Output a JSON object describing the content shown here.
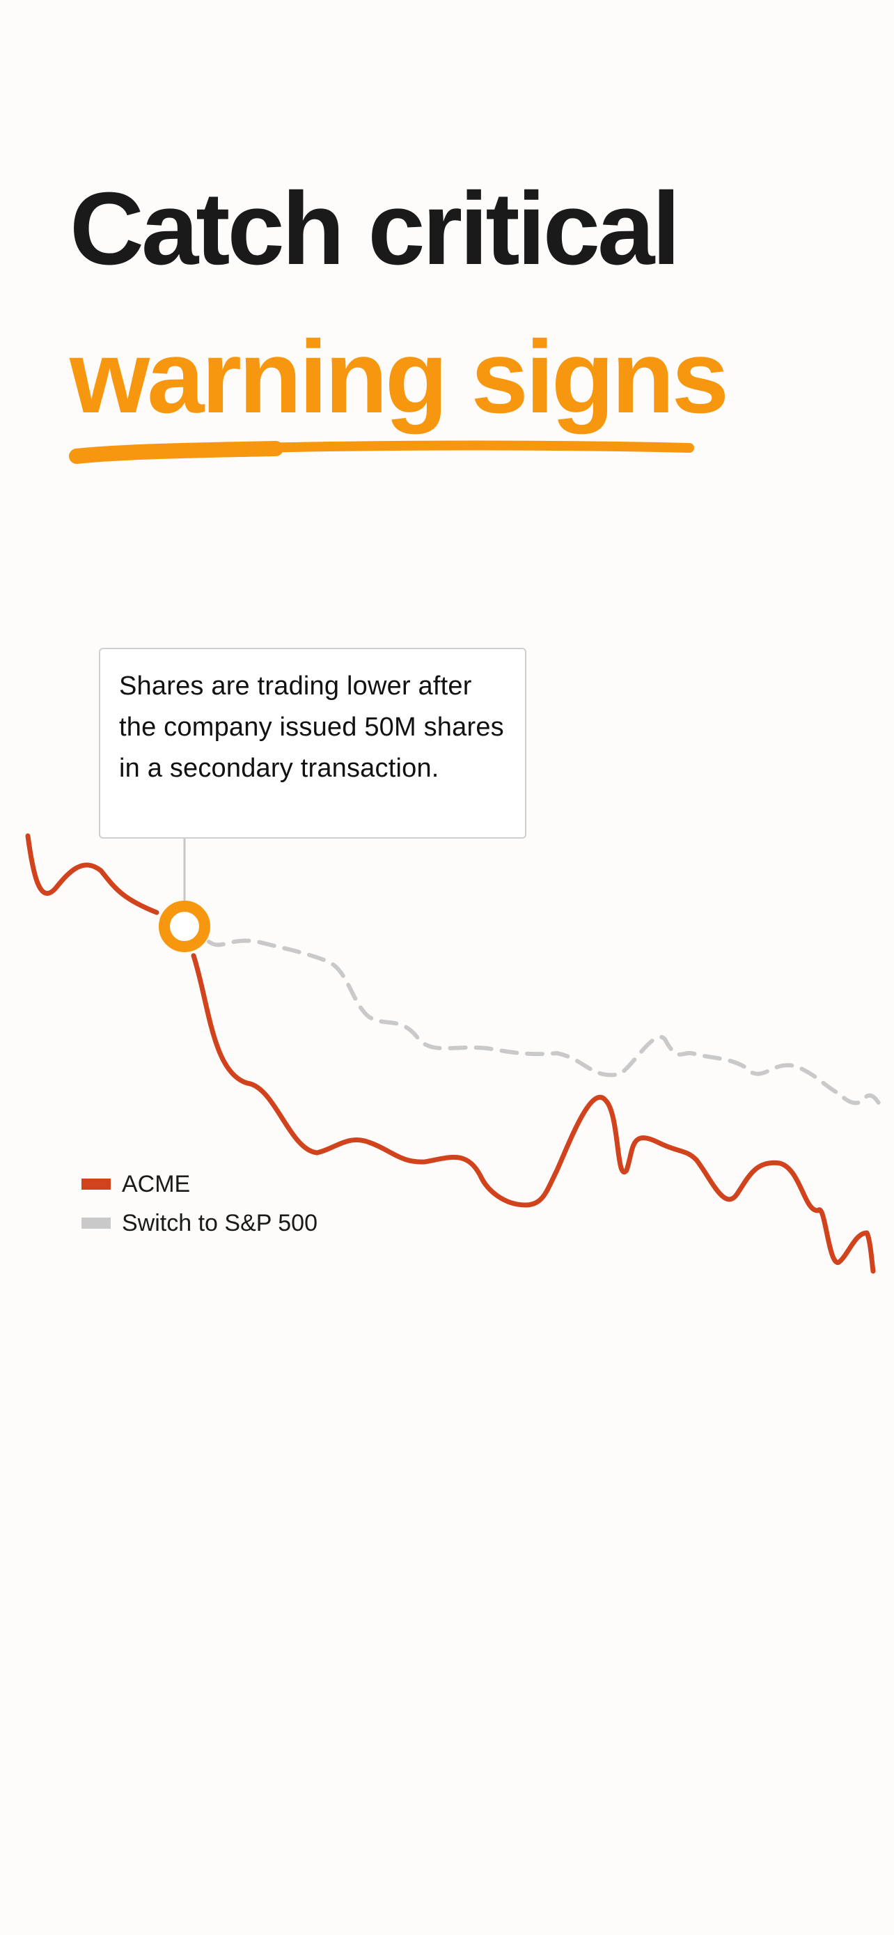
{
  "headline": {
    "line1": "Catch critical",
    "line2": "warning signs"
  },
  "tooltip": {
    "text": "Shares are trading lower after the company issued 50M shares in a secondary transaction."
  },
  "legend": {
    "items": [
      {
        "label": "ACME",
        "color": "#d0431d"
      },
      {
        "label": "Switch to S&P 500",
        "color": "#c9c9c9"
      }
    ]
  },
  "colors": {
    "background": "#fdfcfa",
    "headline_dark": "#1a1a1a",
    "accent_orange": "#f7960f",
    "acme_line": "#d0431d",
    "benchmark_line": "#c9c9c9"
  }
}
